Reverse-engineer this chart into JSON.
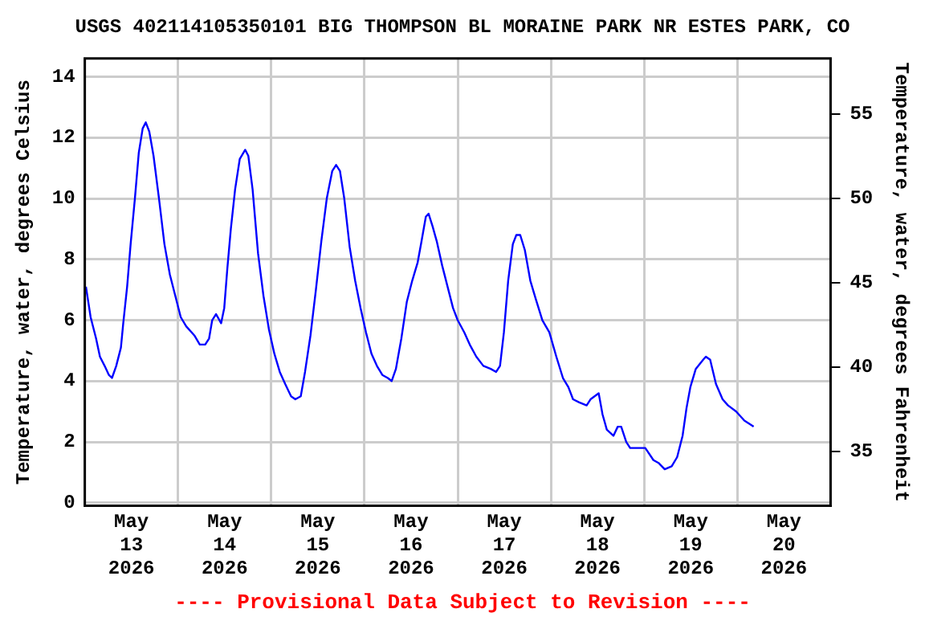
{
  "chart_data": {
    "type": "line",
    "title": "USGS 402114105350101 BIG THOMPSON BL MORAINE PARK NR ESTES PARK, CO",
    "ylabel": "Temperature, water, degrees Celsius",
    "y2label": "Temperature, water, degrees Fahrenheit",
    "annotations": [
      "---- Provisional Data Subject to Revision ----"
    ],
    "x": [
      "2026-05-13T00:18",
      "2026-05-13T01:30",
      "2026-05-13T02:54",
      "2026-05-13T03:54",
      "2026-05-13T05:06",
      "2026-05-13T06:12",
      "2026-05-13T07:00",
      "2026-05-13T08:06",
      "2026-05-13T09:18",
      "2026-05-13T09:54",
      "2026-05-13T10:54",
      "2026-05-13T11:48",
      "2026-05-13T12:54",
      "2026-05-13T13:54",
      "2026-05-13T14:54",
      "2026-05-13T15:42",
      "2026-05-13T16:36",
      "2026-05-13T17:42",
      "2026-05-13T19:06",
      "2026-05-13T20:30",
      "2026-05-13T21:54",
      "2026-05-13T23:18",
      "2026-05-14T00:42",
      "2026-05-14T02:06",
      "2026-05-14T04:12",
      "2026-05-14T05:36",
      "2026-05-14T07:00",
      "2026-05-14T08:00",
      "2026-05-14T08:48",
      "2026-05-14T09:48",
      "2026-05-14T11:06",
      "2026-05-14T11:54",
      "2026-05-14T12:42",
      "2026-05-14T13:36",
      "2026-05-14T14:42",
      "2026-05-14T15:54",
      "2026-05-14T17:18",
      "2026-05-14T18:06",
      "2026-05-14T19:12",
      "2026-05-14T20:36",
      "2026-05-14T22:00",
      "2026-05-14T23:24",
      "2026-05-15T00:48",
      "2026-05-15T02:12",
      "2026-05-15T03:36",
      "2026-05-15T05:06",
      "2026-05-15T06:12",
      "2026-05-15T07:36",
      "2026-05-15T08:42",
      "2026-05-15T10:06",
      "2026-05-15T11:30",
      "2026-05-15T12:54",
      "2026-05-15T14:18",
      "2026-05-15T15:42",
      "2026-05-15T16:42",
      "2026-05-15T17:42",
      "2026-05-15T18:48",
      "2026-05-15T20:12",
      "2026-05-15T21:36",
      "2026-05-15T23:00",
      "2026-05-16T00:24",
      "2026-05-16T01:48",
      "2026-05-16T03:12",
      "2026-05-16T04:36",
      "2026-05-16T06:00",
      "2026-05-16T07:00",
      "2026-05-16T08:06",
      "2026-05-16T09:30",
      "2026-05-16T10:54",
      "2026-05-16T12:18",
      "2026-05-16T13:42",
      "2026-05-16T14:42",
      "2026-05-16T15:48",
      "2026-05-16T16:30",
      "2026-05-16T17:30",
      "2026-05-16T18:36",
      "2026-05-16T20:00",
      "2026-05-16T21:24",
      "2026-05-16T22:48",
      "2026-05-17T00:00",
      "2026-05-17T01:42",
      "2026-05-17T03:06",
      "2026-05-17T04:48",
      "2026-05-17T06:36",
      "2026-05-17T08:30",
      "2026-05-17T09:54",
      "2026-05-17T10:54",
      "2026-05-17T11:54",
      "2026-05-17T13:00",
      "2026-05-17T14:12",
      "2026-05-17T15:06",
      "2026-05-17T16:06",
      "2026-05-17T17:18",
      "2026-05-17T18:42",
      "2026-05-17T20:06",
      "2026-05-17T21:48",
      "2026-05-17T23:36",
      "2026-05-18T01:24",
      "2026-05-18T03:06",
      "2026-05-18T04:30",
      "2026-05-18T05:42",
      "2026-05-18T07:18",
      "2026-05-18T09:12",
      "2026-05-18T10:12",
      "2026-05-18T12:18",
      "2026-05-18T13:18",
      "2026-05-18T14:24",
      "2026-05-18T16:06",
      "2026-05-18T17:12",
      "2026-05-18T18:06",
      "2026-05-18T19:24",
      "2026-05-18T20:24",
      "2026-05-19T00:18",
      "2026-05-19T02:24",
      "2026-05-19T03:48",
      "2026-05-19T05:18",
      "2026-05-19T07:06",
      "2026-05-19T08:30",
      "2026-05-19T09:54",
      "2026-05-19T10:54",
      "2026-05-19T11:54",
      "2026-05-19T13:18",
      "2026-05-19T15:12",
      "2026-05-19T15:54",
      "2026-05-19T17:00",
      "2026-05-19T18:30",
      "2026-05-19T20:12",
      "2026-05-19T21:36",
      "2026-05-19T23:42",
      "2026-05-20T01:48",
      "2026-05-20T04:12"
    ],
    "series": [
      {
        "color": "#0000ff",
        "values": [
          7.1,
          6.1,
          5.4,
          4.8,
          4.5,
          4.2,
          4.1,
          4.5,
          5.1,
          5.9,
          7.1,
          8.5,
          10.0,
          11.5,
          12.3,
          12.5,
          12.2,
          11.4,
          10.0,
          8.5,
          7.5,
          6.8,
          6.1,
          5.8,
          5.5,
          5.2,
          5.2,
          5.4,
          6.0,
          6.2,
          5.9,
          6.4,
          7.7,
          9.0,
          10.3,
          11.3,
          11.6,
          11.4,
          10.3,
          8.2,
          6.8,
          5.7,
          4.9,
          4.3,
          3.9,
          3.5,
          3.4,
          3.5,
          4.3,
          5.5,
          7.0,
          8.6,
          10.0,
          10.9,
          11.1,
          10.9,
          10.0,
          8.4,
          7.3,
          6.4,
          5.6,
          4.9,
          4.5,
          4.2,
          4.1,
          4.0,
          4.4,
          5.4,
          6.6,
          7.3,
          7.9,
          8.6,
          9.4,
          9.5,
          9.1,
          8.6,
          7.8,
          7.1,
          6.4,
          6.0,
          5.6,
          5.2,
          4.8,
          4.5,
          4.4,
          4.3,
          4.5,
          5.6,
          7.3,
          8.5,
          8.8,
          8.8,
          8.3,
          7.3,
          6.7,
          6.0,
          5.6,
          4.8,
          4.1,
          3.8,
          3.4,
          3.3,
          3.2,
          3.4,
          3.6,
          2.9,
          2.4,
          2.2,
          2.5,
          2.5,
          2.0,
          1.8,
          1.8,
          1.4,
          1.3,
          1.1,
          1.2,
          1.5,
          2.2,
          3.1,
          3.8,
          4.4,
          4.7,
          4.8,
          4.7,
          3.9,
          3.4,
          3.2,
          3.0,
          2.7,
          2.5
        ]
      }
    ],
    "xlim": [
      "2026-05-13T00:00",
      "2026-05-21T00:00"
    ],
    "xticks": [
      {
        "value": "2026-05-13T00:00",
        "label": null
      },
      {
        "value": "2026-05-13T12:00",
        "label": "May\n13\n2026"
      },
      {
        "value": "2026-05-14T00:00",
        "label": null
      },
      {
        "value": "2026-05-14T12:00",
        "label": "May\n14\n2026"
      },
      {
        "value": "2026-05-15T00:00",
        "label": null
      },
      {
        "value": "2026-05-15T12:00",
        "label": "May\n15\n2026"
      },
      {
        "value": "2026-05-16T00:00",
        "label": null
      },
      {
        "value": "2026-05-16T12:00",
        "label": "May\n16\n2026"
      },
      {
        "value": "2026-05-17T00:00",
        "label": null
      },
      {
        "value": "2026-05-17T12:00",
        "label": "May\n17\n2026"
      },
      {
        "value": "2026-05-18T00:00",
        "label": null
      },
      {
        "value": "2026-05-18T12:00",
        "label": "May\n18\n2026"
      },
      {
        "value": "2026-05-19T00:00",
        "label": null
      },
      {
        "value": "2026-05-19T12:00",
        "label": "May\n19\n2026"
      },
      {
        "value": "2026-05-20T00:00",
        "label": null
      },
      {
        "value": "2026-05-20T12:00",
        "label": "May\n20\n2026"
      },
      {
        "value": "2026-05-21T00:00",
        "label": null
      }
    ],
    "ylim": [
      -0.1,
      14.6
    ],
    "yticks": [
      0,
      2,
      4,
      6,
      8,
      10,
      12,
      14
    ],
    "y2lim": [
      31.8,
      58.3
    ],
    "y2ticks": [
      35,
      40,
      45,
      50,
      55
    ],
    "grid": true,
    "marker": "none",
    "line_style": "solid"
  }
}
